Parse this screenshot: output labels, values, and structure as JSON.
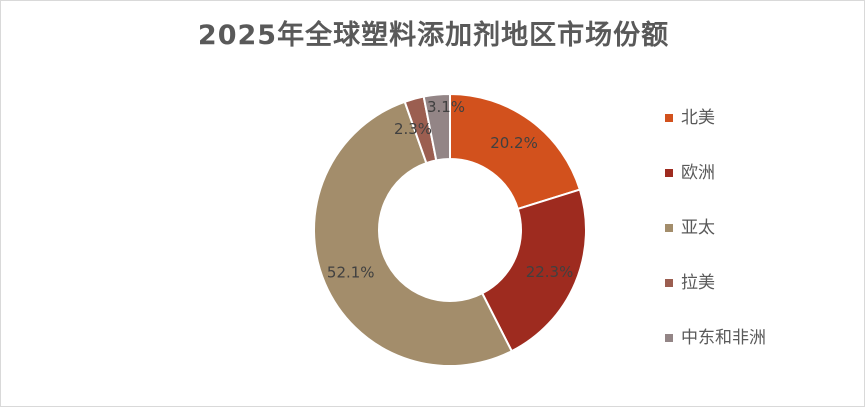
{
  "chart_data": {
    "type": "pie",
    "donut": true,
    "title": "2025年全球塑料添加剂地区市场份额",
    "categories": [
      "北美",
      "欧洲",
      "亚太",
      "拉美",
      "中东和非洲"
    ],
    "values": [
      20.2,
      22.3,
      52.1,
      2.3,
      3.1
    ],
    "labels": [
      "20.2%",
      "22.3%",
      "52.1%",
      "2.3%",
      "3.1%"
    ],
    "colors": [
      "#d2511d",
      "#9e2b1f",
      "#a38d6b",
      "#9b5e50",
      "#938586"
    ],
    "legend_position": "right"
  }
}
